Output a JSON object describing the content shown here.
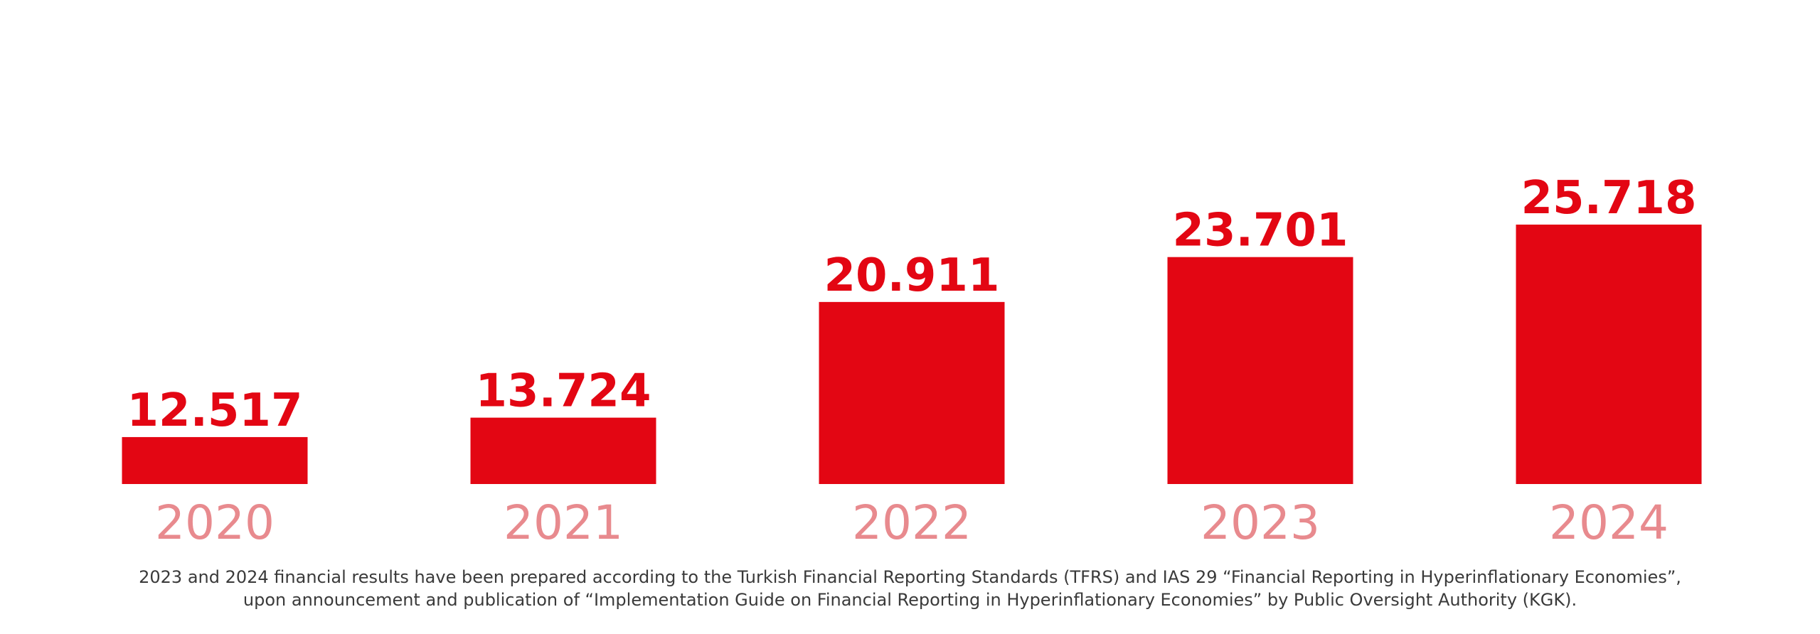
{
  "colors": {
    "bar": "#E30613",
    "value_label": "#E30613",
    "category_label": "#E88A8E",
    "footnote": "#3a3a3a"
  },
  "chart_data": {
    "type": "bar",
    "categories": [
      "2020",
      "2021",
      "2022",
      "2023",
      "2024"
    ],
    "values": [
      12.517,
      13.724,
      20.911,
      23.701,
      25.718
    ],
    "value_labels": [
      "12.517",
      "13.724",
      "20.911",
      "23.701",
      "25.718"
    ],
    "title": "",
    "xlabel": "",
    "ylabel": "",
    "grid": false,
    "axis_visible": false
  },
  "footnote": {
    "line1": "2023 and 2024 financial results have been prepared according to the Turkish Financial Reporting Standards (TFRS) and IAS 29 “Financial Reporting in Hyperinflationary Economies”,",
    "line2": "upon announcement and publication of “Implementation Guide on Financial Reporting in Hyperinflationary Economies” by Public Oversight Authority (KGK)."
  }
}
